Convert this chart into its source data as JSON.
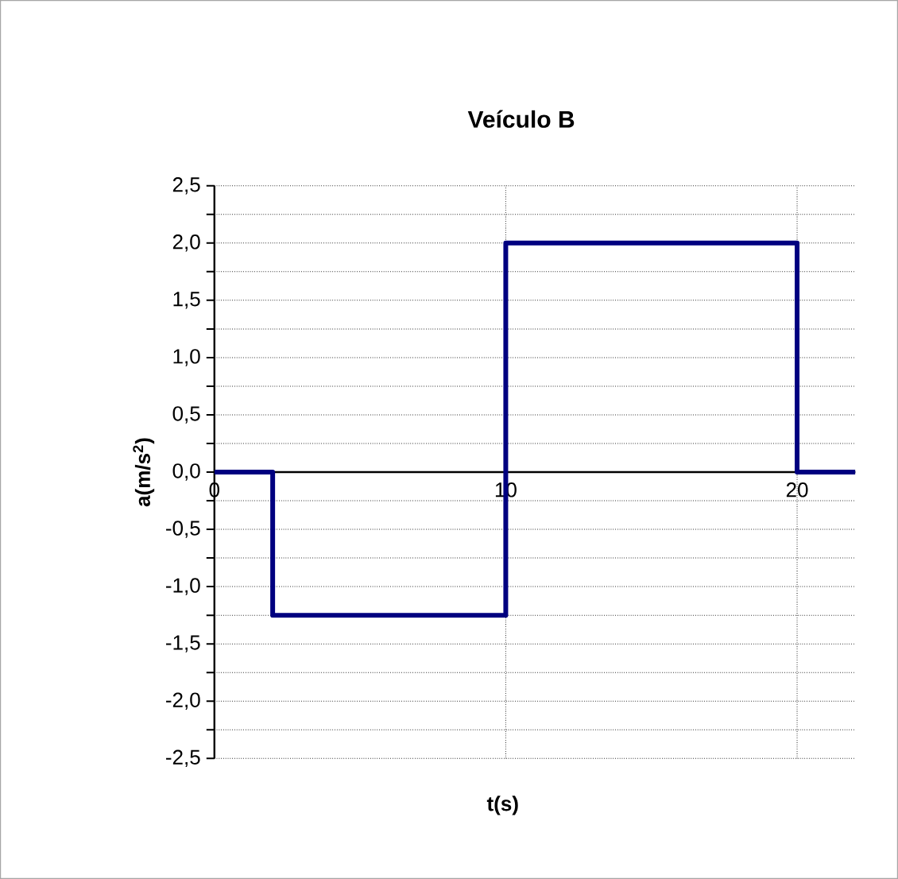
{
  "chart_data": {
    "type": "step",
    "title": "Veículo B",
    "xlabel": "t(s)",
    "ylabel": "a(m/s$^{2}$)",
    "x": [
      0,
      2,
      10,
      20,
      22
    ],
    "series": [
      {
        "color": "#000080",
        "values": [
          0,
          -1.25,
          2,
          0,
          0
        ]
      }
    ],
    "xlim": [
      0,
      22
    ],
    "ylim": [
      -2.5,
      2.5
    ],
    "xticks": [
      0,
      10,
      20
    ],
    "yticks": [
      {
        "value": -2.5,
        "label": "-2,5"
      },
      {
        "value": -2.25,
        "label": null
      },
      {
        "value": -2.0,
        "label": "-2,0"
      },
      {
        "value": -1.75,
        "label": null
      },
      {
        "value": -1.5,
        "label": "-1,5"
      },
      {
        "value": -1.25,
        "label": null
      },
      {
        "value": -1.0,
        "label": "-1,0"
      },
      {
        "value": -0.75,
        "label": null
      },
      {
        "value": -0.5,
        "label": "-0,5"
      },
      {
        "value": -0.25,
        "label": null
      },
      {
        "value": 0.0,
        "label": "0,0"
      },
      {
        "value": 0.25,
        "label": null
      },
      {
        "value": 0.5,
        "label": "0,5"
      },
      {
        "value": 0.75,
        "label": null
      },
      {
        "value": 1.0,
        "label": "1,0"
      },
      {
        "value": 1.25,
        "label": null
      },
      {
        "value": 1.5,
        "label": "1,5"
      },
      {
        "value": 1.75,
        "label": null
      },
      {
        "value": 2.0,
        "label": "2,0"
      },
      {
        "value": 2.25,
        "label": null
      },
      {
        "value": 2.5,
        "label": "2,5"
      }
    ],
    "grid": true,
    "marker": "none",
    "line_style": "solid"
  }
}
